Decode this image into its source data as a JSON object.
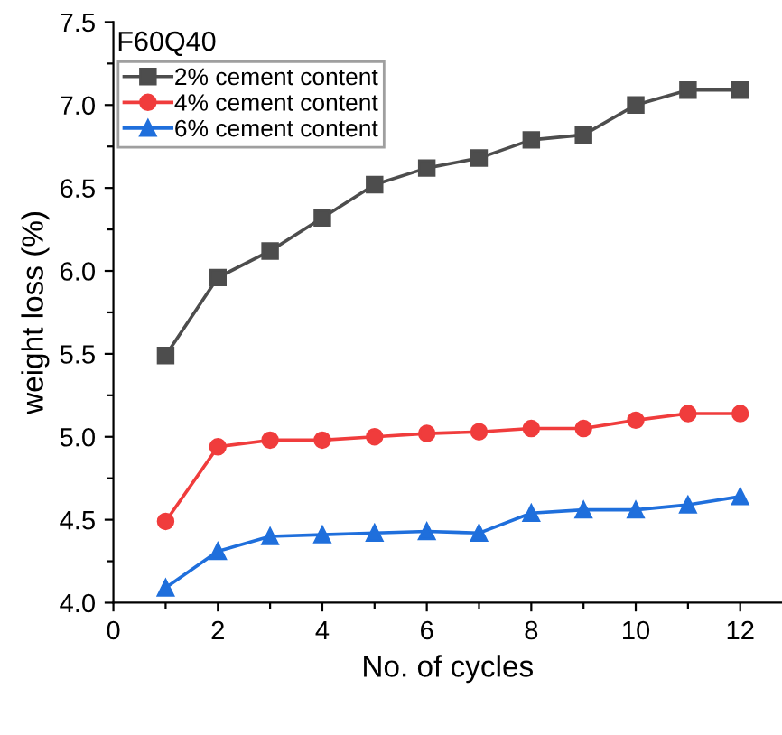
{
  "chart_data": {
    "type": "line",
    "xlabel": "No. of cycles",
    "ylabel": "weight loss (%)",
    "annotations": [
      "F60Q40"
    ],
    "x": [
      1,
      2,
      3,
      4,
      5,
      6,
      7,
      8,
      9,
      10,
      11,
      12
    ],
    "series": [
      {
        "name": "2% cement content",
        "color": "#4d4d4d",
        "marker": "square",
        "values": [
          5.49,
          5.96,
          6.12,
          6.32,
          6.52,
          6.62,
          6.68,
          6.79,
          6.82,
          7.0,
          7.09,
          7.09
        ]
      },
      {
        "name": "4% cement content",
        "color": "#f03c3c",
        "marker": "circle",
        "values": [
          4.49,
          4.94,
          4.98,
          4.98,
          5.0,
          5.02,
          5.03,
          5.05,
          5.05,
          5.1,
          5.14,
          5.14
        ]
      },
      {
        "name": "6% cement content",
        "color": "#1f6fdc",
        "marker": "triangle",
        "values": [
          4.09,
          4.31,
          4.4,
          4.41,
          4.42,
          4.43,
          4.42,
          4.54,
          4.56,
          4.56,
          4.59,
          4.64
        ]
      }
    ],
    "xlim": [
      0,
      12.8
    ],
    "ylim": [
      4.0,
      7.5
    ],
    "xticks": [
      0,
      {
        "value": 1,
        "label": null
      },
      2,
      {
        "value": 3,
        "label": null
      },
      4,
      {
        "value": 5,
        "label": null
      },
      6,
      {
        "value": 7,
        "label": null
      },
      8,
      {
        "value": 9,
        "label": null
      },
      10,
      {
        "value": 11,
        "label": null
      },
      12
    ],
    "yticks": [
      "4.0",
      {
        "value": 4.25,
        "label": null
      },
      {
        "value": 4.5,
        "label": "4.5"
      },
      {
        "value": 4.75,
        "label": null
      },
      {
        "value": 5.0,
        "label": "5.0"
      },
      {
        "value": 5.25,
        "label": null
      },
      {
        "value": 5.5,
        "label": "5.5"
      },
      {
        "value": 5.75,
        "label": null
      },
      {
        "value": 6.0,
        "label": "6.0"
      },
      {
        "value": 6.25,
        "label": null
      },
      {
        "value": 6.5,
        "label": "6.5"
      },
      {
        "value": 6.75,
        "label": null
      },
      {
        "value": 7.0,
        "label": "7.0"
      },
      {
        "value": 7.25,
        "label": null
      },
      {
        "value": 7.5,
        "label": "7.5"
      }
    ],
    "grid": false,
    "legend": "top left",
    "line_style": "solid"
  }
}
